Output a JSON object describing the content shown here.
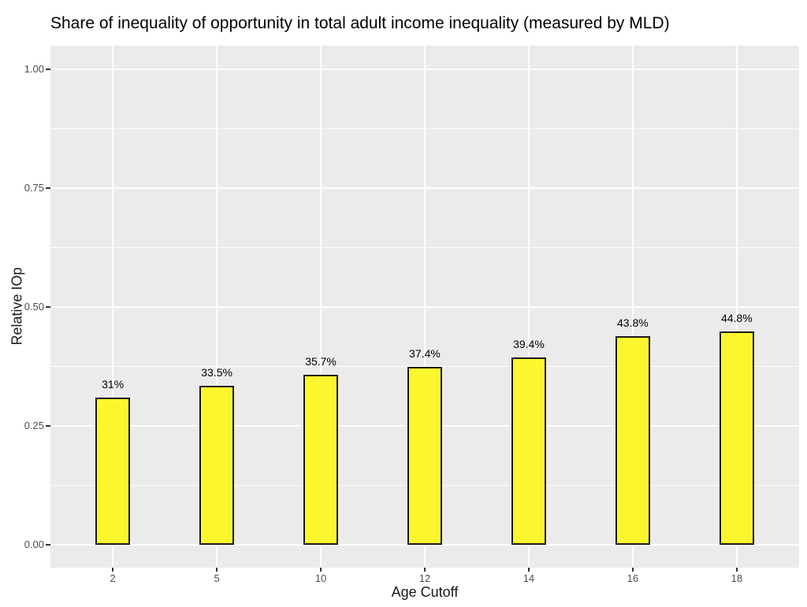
{
  "chart_data": {
    "type": "bar",
    "title": "Share of inequality of opportunity in total adult income inequality (measured by MLD)",
    "xlabel": "Age Cutoff",
    "ylabel": "Relative IOp",
    "categories": [
      "2",
      "5",
      "10",
      "12",
      "14",
      "16",
      "18"
    ],
    "values": [
      0.31,
      0.335,
      0.357,
      0.374,
      0.394,
      0.438,
      0.448
    ],
    "bar_labels": [
      "31%",
      "33.5%",
      "35.7%",
      "37.4%",
      "39.4%",
      "43.8%",
      "44.8%"
    ],
    "y_tick_values": [
      0.0,
      0.25,
      0.5,
      0.75,
      1.0
    ],
    "y_tick_labels": [
      "0.00",
      "0.25",
      "0.50",
      "0.75",
      "1.00"
    ],
    "y_minor_values": [
      0.125,
      0.375,
      0.625,
      0.875
    ],
    "ylim": [
      0,
      1.0
    ],
    "grid": "white major and minor horizontal gridlines, white vertical gridlines at each category",
    "legend_position": "none",
    "colors": {
      "bar_fill": "#FCF62F",
      "bar_border": "#1a1a1a",
      "panel_bg": "#EBEBEB",
      "gridline": "#FFFFFF",
      "tick_label": "#4D4D4D",
      "tick_mark": "#333333",
      "axis_title": "#1a1a1a",
      "title_text": "#000000"
    }
  }
}
